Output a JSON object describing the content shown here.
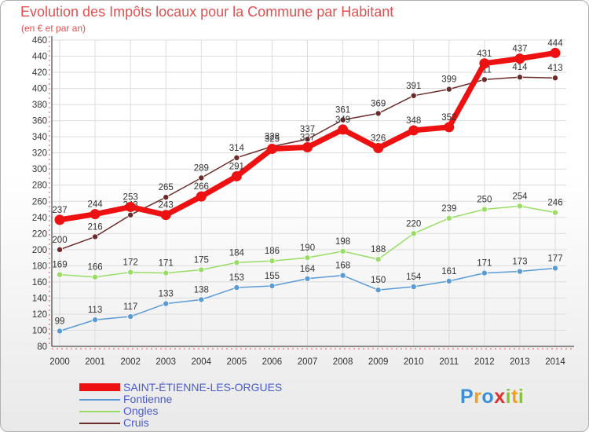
{
  "title": "Evolution des Impôts locaux pour la Commune par Habitant",
  "subtitle": "(en € et par an)",
  "logo_text": "Proxiti",
  "colors": {
    "main": "#ee1111",
    "fontienne": "#5b9bd5",
    "ongles": "#99dd66",
    "cruis": "#6b2b2b"
  },
  "chart_data": {
    "type": "line",
    "x": [
      "2000",
      "2001",
      "2002",
      "2003",
      "2004",
      "2005",
      "2006",
      "2007",
      "2008",
      "2009",
      "2010",
      "2011",
      "2012",
      "2013",
      "2014"
    ],
    "ylim": [
      80,
      460
    ],
    "y_ticks": [
      80,
      100,
      120,
      140,
      160,
      180,
      200,
      220,
      240,
      260,
      280,
      300,
      320,
      340,
      360,
      380,
      400,
      420,
      440,
      460
    ],
    "grid": true,
    "legend_position": "bottom-left",
    "series": [
      {
        "name": "SAINT-ÉTIENNE-LES-ORGUES",
        "color": "#ee1111",
        "values": [
          237,
          244,
          253,
          243,
          266,
          291,
          325,
          327,
          349,
          326,
          348,
          352,
          431,
          437,
          444
        ]
      },
      {
        "name": "Fontienne",
        "color": "#5b9bd5",
        "values": [
          99,
          113,
          117,
          133,
          138,
          153,
          155,
          164,
          168,
          150,
          154,
          161,
          171,
          173,
          177
        ]
      },
      {
        "name": "Ongles",
        "color": "#99dd66",
        "values": [
          169,
          166,
          172,
          171,
          175,
          184,
          186,
          190,
          198,
          188,
          220,
          239,
          250,
          254,
          246
        ]
      },
      {
        "name": "Cruis",
        "color": "#6b2b2b",
        "values": [
          200,
          216,
          243,
          265,
          289,
          314,
          328,
          337,
          361,
          369,
          391,
          399,
          411,
          414,
          413
        ]
      }
    ]
  }
}
